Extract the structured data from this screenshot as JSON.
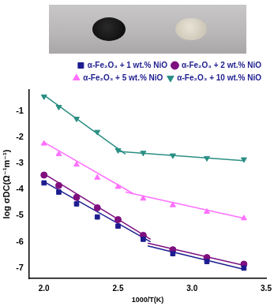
{
  "chart_data": {
    "type": "scatter",
    "x_label": "1000/T(K)",
    "y_label": "log σDC(Ω⁻¹m⁻¹)",
    "xlim": [
      1.9,
      3.5
    ],
    "xticks": [
      {
        "value": 2.0,
        "label": "2.0"
      },
      {
        "value": 2.5,
        "label": "2.5"
      },
      {
        "value": 3.0,
        "label": "3.0"
      },
      {
        "value": 3.5,
        "label": "3.5"
      }
    ],
    "ylim": [
      -7.4,
      -0.2
    ],
    "yticks": [
      -7,
      -6,
      -5,
      -4,
      -3,
      -2,
      -1
    ],
    "grid": false,
    "legend": "top",
    "x": [
      2.0,
      2.1,
      2.22,
      2.36,
      2.5,
      2.67,
      2.87,
      3.1,
      3.35
    ],
    "series": [
      {
        "name": "α-Fe₂O₃ + 1 wt.% NiO",
        "color": "#1c1c8f",
        "marker": "square",
        "values": [
          -3.75,
          -4.1,
          -4.55,
          -5.05,
          -5.4,
          -5.9,
          -6.45,
          -6.75,
          -7.0
        ],
        "fit_lines": [
          {
            "x": [
              2.0,
              2.72
            ],
            "values": [
              -3.7,
              -6.0
            ]
          },
          {
            "x": [
              2.7,
              3.35
            ],
            "values": [
              -6.15,
              -7.05
            ]
          }
        ]
      },
      {
        "name": "α-Fe₂O₃ + 2 wt.% NiO",
        "color": "#7f0f7f",
        "marker": "circle",
        "values": [
          -3.45,
          -3.85,
          -4.3,
          -4.7,
          -5.15,
          -5.75,
          -6.3,
          -6.6,
          -6.85
        ],
        "fit_lines": [
          {
            "x": [
              2.0,
              2.72
            ],
            "values": [
              -3.4,
              -5.9
            ]
          },
          {
            "x": [
              2.7,
              3.35
            ],
            "values": [
              -6.05,
              -6.9
            ]
          }
        ]
      },
      {
        "name": "α-Fe₂O₃ + 5 wt.% NiO",
        "color": "#ff70ff",
        "marker": "triangle",
        "values": [
          -2.25,
          -2.65,
          -3.05,
          -3.55,
          -3.9,
          -4.35,
          -4.6,
          -4.85,
          -5.1
        ],
        "fit_lines": [
          {
            "x": [
              2.0,
              2.6
            ],
            "values": [
              -2.2,
              -4.15
            ]
          },
          {
            "x": [
              2.55,
              3.35
            ],
            "values": [
              -4.1,
              -5.1
            ]
          }
        ]
      },
      {
        "name": "α-Fe₂O₃ + 10 wt.% NiO",
        "color": "#2a8f84",
        "marker": "triangle_down",
        "values": [
          -0.45,
          -0.85,
          -1.3,
          -1.8,
          -2.5,
          -2.6,
          -2.7,
          -2.8,
          -2.85
        ],
        "fit_lines": [
          {
            "x": [
              2.0,
              2.55
            ],
            "values": [
              -0.4,
              -2.65
            ]
          },
          {
            "x": [
              2.5,
              3.35
            ],
            "values": [
              -2.55,
              -2.9
            ]
          }
        ]
      }
    ]
  }
}
